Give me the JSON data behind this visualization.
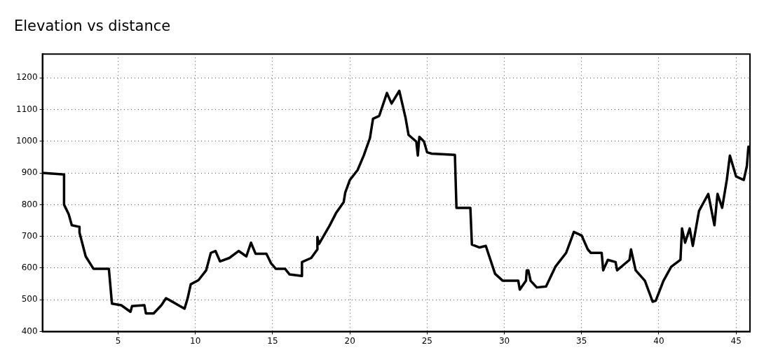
{
  "chart_data": {
    "type": "line",
    "title": "Elevation vs distance",
    "x": [
      0.1,
      1.5,
      1.5,
      1.8,
      2.0,
      2.5,
      2.5,
      2.9,
      3.4,
      4.4,
      4.6,
      5.2,
      5.8,
      5.9,
      6.7,
      6.8,
      7.3,
      7.8,
      8.1,
      8.4,
      8.9,
      9.3,
      9.5,
      9.7,
      10.2,
      10.7,
      11.0,
      11.3,
      11.6,
      12.2,
      12.8,
      13.3,
      13.6,
      13.9,
      14.6,
      14.9,
      15.2,
      15.8,
      16.1,
      16.9,
      16.9,
      17.5,
      17.9,
      17.9,
      18.0,
      18.7,
      19.1,
      19.6,
      19.7,
      20.0,
      20.5,
      20.9,
      21.3,
      21.5,
      21.9,
      22.4,
      22.7,
      23.2,
      23.6,
      23.8,
      24.3,
      24.4,
      24.5,
      24.8,
      25.0,
      25.3,
      26.8,
      26.9,
      27.8,
      27.9,
      28.4,
      28.8,
      29.4,
      29.9,
      30.9,
      31.0,
      31.4,
      31.45,
      31.55,
      31.7,
      32.1,
      32.7,
      33.3,
      34.0,
      34.5,
      35.0,
      35.4,
      35.6,
      36.3,
      36.4,
      36.7,
      37.2,
      37.3,
      38.1,
      38.2,
      38.5,
      39.1,
      39.6,
      39.8,
      40.3,
      40.8,
      41.4,
      41.5,
      41.7,
      42.0,
      42.2,
      42.6,
      43.2,
      43.6,
      43.8,
      44.1,
      44.4,
      44.6,
      45.0,
      45.5,
      45.7,
      45.8
    ],
    "series": [
      {
        "color": "#000000",
        "values": [
          900,
          895,
          800,
          770,
          735,
          730,
          712,
          637,
          598,
          598,
          488,
          483,
          462,
          480,
          483,
          457,
          457,
          483,
          505,
          497,
          483,
          472,
          505,
          549,
          562,
          593,
          648,
          654,
          621,
          632,
          654,
          637,
          680,
          645,
          645,
          615,
          598,
          598,
          580,
          575,
          619,
          632,
          659,
          698,
          676,
          735,
          773,
          808,
          838,
          878,
          909,
          955,
          1010,
          1071,
          1080,
          1152,
          1119,
          1159,
          1075,
          1020,
          999,
          955,
          1014,
          999,
          965,
          961,
          957,
          790,
          790,
          674,
          665,
          670,
          582,
          560,
          560,
          532,
          560,
          593,
          593,
          560,
          539,
          542,
          604,
          648,
          714,
          703,
          659,
          648,
          648,
          593,
          626,
          619,
          593,
          626,
          659,
          593,
          560,
          494,
          497,
          560,
          604,
          626,
          725,
          680,
          725,
          670,
          780,
          834,
          735,
          834,
          790,
          878,
          955,
          889,
          878,
          922,
          983
        ]
      }
    ],
    "xlim": [
      0.1,
      45.9
    ],
    "ylim": [
      400,
      1275
    ],
    "xticks": [
      5,
      10,
      15,
      20,
      25,
      30,
      35,
      40,
      45
    ],
    "yticks": [
      400,
      500,
      600,
      700,
      800,
      900,
      1000,
      1100,
      1200
    ],
    "grid": true,
    "legend": false,
    "marker": "none",
    "line_style": "solid"
  }
}
